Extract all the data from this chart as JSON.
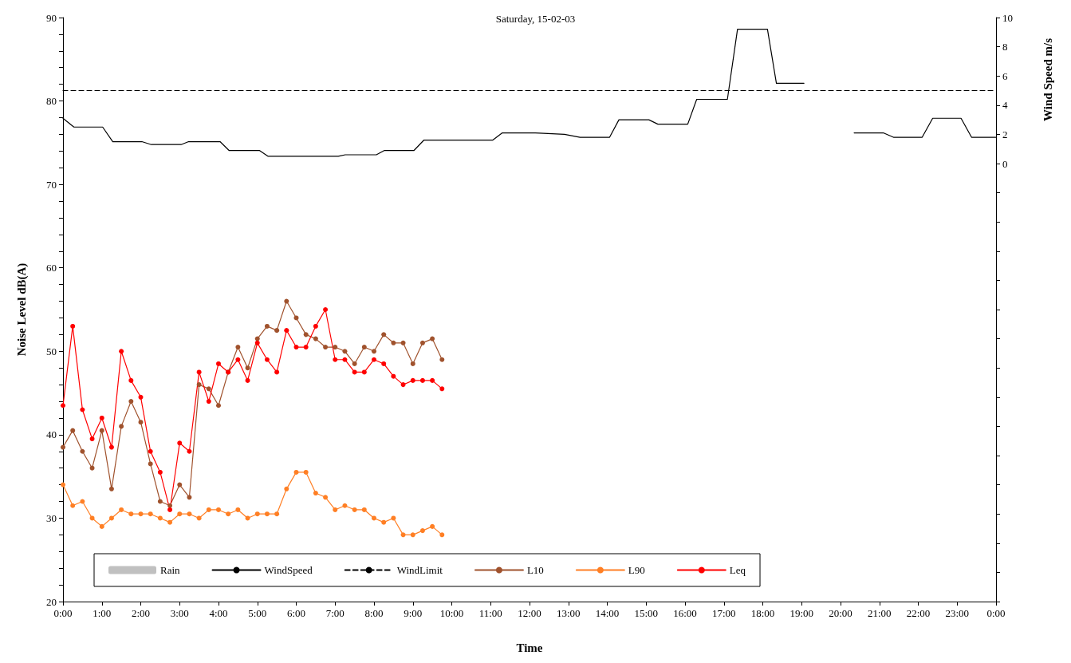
{
  "chart_data": {
    "type": "line",
    "title": "Saturday, 15-02-03",
    "xlabel": "Time",
    "ylabel": "Noise Level dB(A)",
    "y2label": "Wind Speed m/s",
    "xlim": [
      0,
      24
    ],
    "xticks": [
      {
        "value": 0,
        "label": "0:00"
      },
      {
        "value": 1,
        "label": "1:00"
      },
      {
        "value": 2,
        "label": "2:00"
      },
      {
        "value": 3,
        "label": "3:00"
      },
      {
        "value": 4,
        "label": "4:00"
      },
      {
        "value": 5,
        "label": "5:00"
      },
      {
        "value": 6,
        "label": "6:00"
      },
      {
        "value": 7,
        "label": "7:00"
      },
      {
        "value": 8,
        "label": "8:00"
      },
      {
        "value": 9,
        "label": "9:00"
      },
      {
        "value": 10,
        "label": "10:00"
      },
      {
        "value": 11,
        "label": "11:00"
      },
      {
        "value": 12,
        "label": "12:00"
      },
      {
        "value": 13,
        "label": "13:00"
      },
      {
        "value": 14,
        "label": "14:00"
      },
      {
        "value": 15,
        "label": "15:00"
      },
      {
        "value": 16,
        "label": "16:00"
      },
      {
        "value": 17,
        "label": "17:00"
      },
      {
        "value": 18,
        "label": "18:00"
      },
      {
        "value": 19,
        "label": "19:00"
      },
      {
        "value": 20,
        "label": "20:00"
      },
      {
        "value": 21,
        "label": "21:00"
      },
      {
        "value": 22,
        "label": "22:00"
      },
      {
        "value": 23,
        "label": "23:00"
      },
      {
        "value": 24,
        "label": "0:00"
      }
    ],
    "ylim": [
      20,
      90
    ],
    "yticks": [
      20,
      {
        "value": 22,
        "label": null
      },
      {
        "value": 24,
        "label": null
      },
      {
        "value": 26,
        "label": null
      },
      {
        "value": 28,
        "label": null
      },
      30,
      {
        "value": 32,
        "label": null
      },
      {
        "value": 34,
        "label": null
      },
      {
        "value": 36,
        "label": null
      },
      {
        "value": 38,
        "label": null
      },
      40,
      {
        "value": 42,
        "label": null
      },
      {
        "value": 44,
        "label": null
      },
      {
        "value": 46,
        "label": null
      },
      {
        "value": 48,
        "label": null
      },
      50,
      {
        "value": 52,
        "label": null
      },
      {
        "value": 54,
        "label": null
      },
      {
        "value": 56,
        "label": null
      },
      {
        "value": 58,
        "label": null
      },
      60,
      {
        "value": 62,
        "label": null
      },
      {
        "value": 64,
        "label": null
      },
      {
        "value": 66,
        "label": null
      },
      {
        "value": 68,
        "label": null
      },
      70,
      {
        "value": 72,
        "label": null
      },
      {
        "value": 74,
        "label": null
      },
      {
        "value": 76,
        "label": null
      },
      {
        "value": 78,
        "label": null
      },
      80,
      {
        "value": 82,
        "label": null
      },
      {
        "value": 84,
        "label": null
      },
      {
        "value": 86,
        "label": null
      },
      {
        "value": 88,
        "label": null
      },
      90
    ],
    "y2lim": [
      -30,
      10
    ],
    "y2ticks": [
      {
        "value": -30,
        "label": null
      },
      {
        "value": -28,
        "label": null
      },
      {
        "value": -26,
        "label": null
      },
      {
        "value": -24,
        "label": null
      },
      {
        "value": -22,
        "label": null
      },
      {
        "value": -20,
        "label": null
      },
      {
        "value": -18,
        "label": null
      },
      {
        "value": -16,
        "label": null
      },
      {
        "value": -14,
        "label": null
      },
      {
        "value": -12,
        "label": null
      },
      {
        "value": -10,
        "label": null
      },
      {
        "value": -8,
        "label": null
      },
      {
        "value": -6,
        "label": null
      },
      {
        "value": -4,
        "label": null
      },
      {
        "value": -2,
        "label": null
      },
      0,
      2,
      4,
      6,
      8,
      10
    ],
    "grid": false,
    "legend": "bottom left",
    "marker": "circle",
    "line_style": "solid",
    "x": [
      0,
      0.25,
      0.5,
      0.75,
      1,
      1.25,
      1.5,
      1.75,
      2,
      2.25,
      2.5,
      2.75,
      3,
      3.25,
      3.5,
      3.75,
      4,
      4.25,
      4.5,
      4.75,
      5,
      5.25,
      5.5,
      5.75,
      6,
      6.25,
      6.5,
      6.75,
      7,
      7.25,
      7.5,
      7.75,
      8,
      8.25,
      8.5,
      8.75,
      9,
      9.25,
      9.5,
      9.75
    ],
    "series": [
      {
        "name": "Rain",
        "type": "bar",
        "color": "#c0c0c0",
        "values": [
          null,
          null,
          null,
          null,
          null,
          null,
          null,
          null,
          null,
          null,
          null,
          null,
          null,
          null,
          null,
          null,
          null,
          null,
          null,
          null,
          null,
          null,
          null,
          null,
          null,
          null,
          null,
          null,
          null,
          null,
          null,
          null,
          null,
          null,
          null,
          null,
          null,
          null,
          null,
          null
        ]
      },
      {
        "name": "WindSpeed",
        "color": "#000000",
        "axis": "y2",
        "marker": "none",
        "x": [
          0,
          0.28,
          1.02,
          1.28,
          2.03,
          2.27,
          3.04,
          3.23,
          4.04,
          4.27,
          5.05,
          5.27,
          7.08,
          7.26,
          8.06,
          8.27,
          9.03,
          9.28,
          11.05,
          11.3,
          12.15,
          12.9,
          13.3,
          14.06,
          14.3,
          15.07,
          15.3,
          16.07,
          16.3,
          17.09,
          17.35,
          18.12,
          18.35,
          19.06,
          19.7,
          20.35,
          21.1,
          21.36,
          22.1,
          22.37,
          23.1,
          23.37,
          24
        ],
        "values": [
          3.1,
          2.5,
          2.5,
          1.5,
          1.5,
          1.3,
          1.3,
          1.5,
          1.5,
          0.9,
          0.9,
          0.5,
          0.5,
          0.6,
          0.6,
          0.9,
          0.9,
          1.6,
          1.6,
          2.1,
          2.1,
          2.0,
          1.8,
          1.8,
          3.0,
          3.0,
          2.7,
          2.7,
          4.4,
          4.4,
          9.2,
          9.2,
          5.5,
          5.5,
          null,
          2.1,
          2.1,
          1.8,
          1.8,
          3.1,
          3.1,
          1.8,
          1.8
        ]
      },
      {
        "name": "WindLimit",
        "color": "#000000",
        "axis": "y2",
        "marker": "none",
        "line_style": "dashed",
        "x": [
          0,
          24
        ],
        "values": [
          5,
          5
        ]
      },
      {
        "name": "L10",
        "color": "#a0522d",
        "values": [
          38.5,
          40.5,
          38,
          36,
          40.5,
          33.5,
          41,
          44,
          41.5,
          36.5,
          32,
          31.5,
          34,
          32.5,
          46,
          45.5,
          43.5,
          47.5,
          50.5,
          48,
          51.5,
          53,
          52.5,
          56,
          54,
          52,
          51.5,
          50.5,
          50.5,
          50,
          48.5,
          50.5,
          50,
          52,
          51,
          51,
          48.5,
          51,
          51.5,
          49
        ]
      },
      {
        "name": "L90",
        "color": "#ff7f24",
        "values": [
          34,
          31.5,
          32,
          30,
          29,
          30,
          31,
          30.5,
          30.5,
          30.5,
          30,
          29.5,
          30.5,
          30.5,
          30,
          31,
          31,
          30.5,
          31,
          30,
          30.5,
          30.5,
          30.5,
          33.5,
          35.5,
          35.5,
          33,
          32.5,
          31,
          31.5,
          31,
          31,
          30,
          29.5,
          30,
          28,
          28,
          28.5,
          29,
          28
        ]
      },
      {
        "name": "Leq",
        "color": "#ff0000",
        "values": [
          43.5,
          53,
          43,
          39.5,
          42,
          38.5,
          50,
          46.5,
          44.5,
          38,
          35.5,
          31,
          39,
          38,
          47.5,
          44,
          48.5,
          47.5,
          49,
          46.5,
          51,
          49,
          47.5,
          52.5,
          50.5,
          50.5,
          53,
          55,
          49,
          49,
          47.5,
          47.5,
          49,
          48.5,
          47,
          46,
          46.5,
          46.5,
          46.5,
          45.5
        ]
      }
    ]
  }
}
